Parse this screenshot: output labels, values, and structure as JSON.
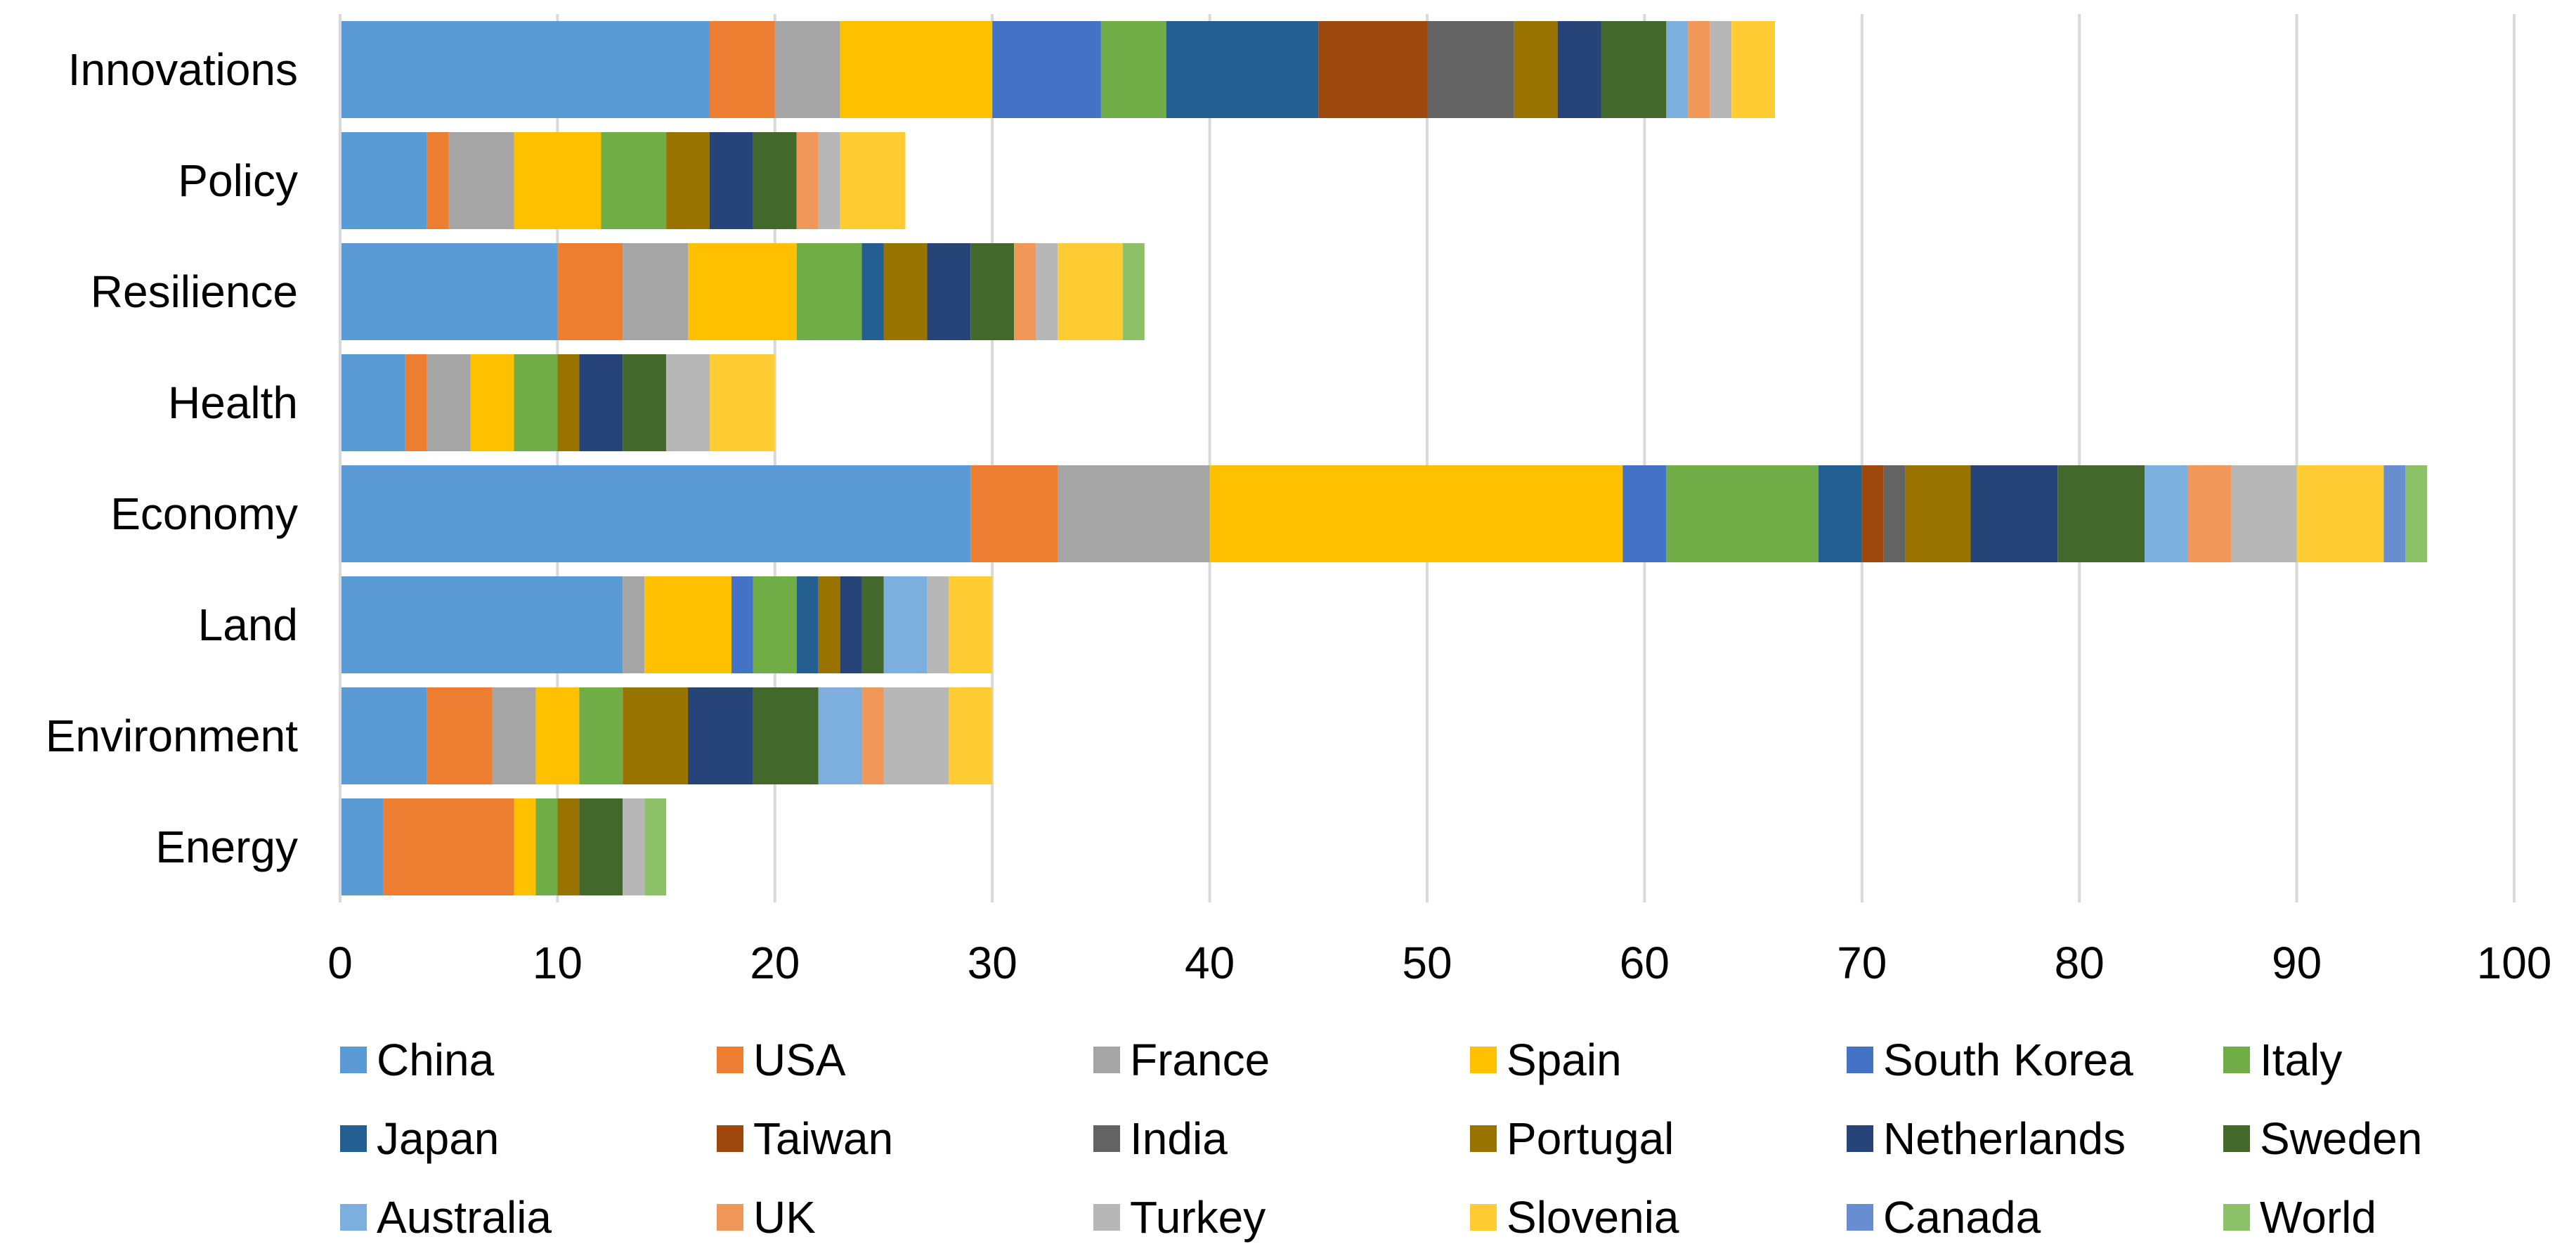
{
  "chart_data": {
    "type": "bar",
    "orientation": "horizontal",
    "stacked": true,
    "title": "",
    "xlabel": "",
    "ylabel": "",
    "xlim": [
      0,
      100
    ],
    "xticks": [
      0,
      10,
      20,
      30,
      40,
      50,
      60,
      70,
      80,
      90,
      100
    ],
    "grid": true,
    "legend_position": "bottom",
    "categories": [
      "Innovations",
      "Policy",
      "Resilience",
      "Health",
      "Economy",
      "Land",
      "Environment",
      "Energy"
    ],
    "series": [
      {
        "name": "China",
        "color": "#5b9bd5",
        "values": [
          17,
          4,
          10,
          3,
          29,
          13,
          4,
          2
        ]
      },
      {
        "name": "USA",
        "color": "#ed7d31",
        "values": [
          3,
          1,
          3,
          1,
          4,
          0,
          3,
          6
        ]
      },
      {
        "name": "France",
        "color": "#a5a5a5",
        "values": [
          3,
          3,
          3,
          2,
          7,
          1,
          2,
          0
        ]
      },
      {
        "name": "Spain",
        "color": "#ffc000",
        "values": [
          7,
          4,
          5,
          2,
          19,
          4,
          2,
          1
        ]
      },
      {
        "name": "South Korea",
        "color": "#4472c4",
        "values": [
          5,
          0,
          0,
          0,
          2,
          1,
          0,
          0
        ]
      },
      {
        "name": "Italy",
        "color": "#70ad47",
        "values": [
          3,
          3,
          3,
          2,
          7,
          2,
          2,
          1
        ]
      },
      {
        "name": "Japan",
        "color": "#255e91",
        "values": [
          7,
          0,
          1,
          0,
          2,
          1,
          0,
          0
        ]
      },
      {
        "name": "Taiwan",
        "color": "#9e480e",
        "values": [
          5,
          0,
          0,
          0,
          1,
          0,
          0,
          0
        ]
      },
      {
        "name": "India",
        "color": "#636363",
        "values": [
          4,
          0,
          0,
          0,
          1,
          0,
          0,
          0
        ]
      },
      {
        "name": "Portugal",
        "color": "#997300",
        "values": [
          2,
          2,
          2,
          1,
          3,
          1,
          3,
          1
        ]
      },
      {
        "name": "Netherlands",
        "color": "#264478",
        "values": [
          2,
          2,
          2,
          2,
          4,
          1,
          3,
          0
        ]
      },
      {
        "name": "Sweden",
        "color": "#43682b",
        "values": [
          3,
          2,
          2,
          2,
          4,
          1,
          3,
          2
        ]
      },
      {
        "name": "Australia",
        "color": "#7cafdd",
        "values": [
          1,
          0,
          0,
          0,
          2,
          2,
          2,
          0
        ]
      },
      {
        "name": "UK",
        "color": "#f1975a",
        "values": [
          1,
          1,
          1,
          0,
          2,
          0,
          1,
          0
        ]
      },
      {
        "name": "Turkey",
        "color": "#b7b7b7",
        "values": [
          1,
          1,
          1,
          2,
          3,
          1,
          3,
          1
        ]
      },
      {
        "name": "Slovenia",
        "color": "#ffcd33",
        "values": [
          2,
          3,
          3,
          3,
          4,
          2,
          2,
          0
        ]
      },
      {
        "name": "Canada",
        "color": "#698ed0",
        "values": [
          0,
          0,
          0,
          0,
          1,
          0,
          0,
          0
        ]
      },
      {
        "name": "World",
        "color": "#8cc168",
        "values": [
          0,
          0,
          1,
          0,
          1,
          0,
          0,
          1
        ]
      }
    ]
  }
}
